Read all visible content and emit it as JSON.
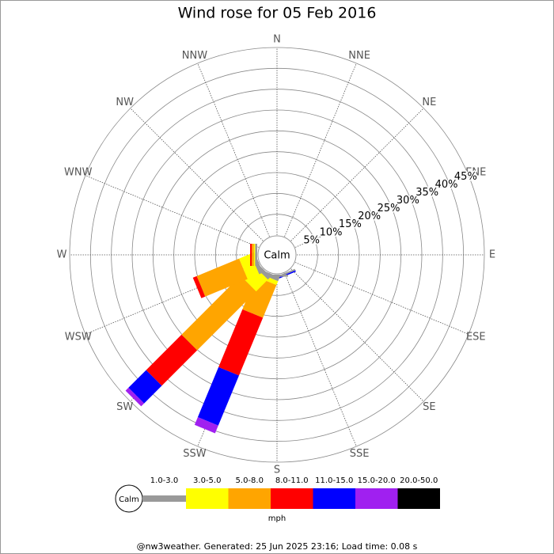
{
  "chart_data": {
    "type": "windrose",
    "title": "Wind rose for 05 Feb 2016",
    "center_label": "Calm",
    "directions": [
      "N",
      "NNE",
      "NE",
      "ENE",
      "E",
      "ESE",
      "SE",
      "SSE",
      "S",
      "SSW",
      "SW",
      "WSW",
      "W",
      "WNW",
      "NW",
      "NNW"
    ],
    "ylim": [
      0,
      45
    ],
    "yticks": [
      {
        "value": 5,
        "label": "5%"
      },
      {
        "value": 10,
        "label": "10%"
      },
      {
        "value": 15,
        "label": "15%"
      },
      {
        "value": 20,
        "label": "20%"
      },
      {
        "value": 25,
        "label": "25%"
      },
      {
        "value": 30,
        "label": "30%"
      },
      {
        "value": 35,
        "label": "35%"
      },
      {
        "value": 40,
        "label": "40%"
      },
      {
        "value": 45,
        "label": "45%"
      }
    ],
    "series": [
      {
        "name": "1.0-3.0",
        "color": "#999999",
        "values": [
          0,
          0,
          0,
          0,
          0,
          0,
          0,
          0.4,
          0.5,
          1,
          1,
          1,
          0.5,
          0,
          0,
          0
        ]
      },
      {
        "name": "3.0-5.0",
        "color": "#ffff00",
        "values": [
          0,
          0,
          0,
          0,
          0,
          0,
          0,
          0,
          0,
          1,
          4,
          3,
          0.3,
          0,
          0,
          0
        ]
      },
      {
        "name": "5.0-8.0",
        "color": "#ffa500",
        "values": [
          0,
          0,
          0,
          0,
          0,
          0,
          0,
          0,
          0,
          8.5,
          20,
          11,
          0.5,
          0,
          0,
          0
        ]
      },
      {
        "name": "8.0-11.0",
        "color": "#ff0000",
        "values": [
          0,
          0,
          0,
          0,
          0,
          0,
          0,
          0,
          0,
          15,
          12,
          1,
          0.4,
          0,
          0,
          0
        ]
      },
      {
        "name": "11.0-15.0",
        "color": "#0000ff",
        "values": [
          0,
          0,
          0,
          0,
          0,
          0,
          0,
          0.3,
          0,
          13,
          6,
          0,
          0,
          0,
          0,
          0
        ]
      },
      {
        "name": "15.0-20.0",
        "color": "#a020f0",
        "values": [
          0,
          0,
          0,
          0,
          0,
          0,
          0,
          0,
          0,
          2,
          1,
          0,
          0,
          0,
          0,
          0
        ]
      },
      {
        "name": "20.0-50.0",
        "color": "#000000",
        "values": [
          0,
          0,
          0,
          0,
          0,
          0,
          0,
          0,
          0,
          0,
          0,
          0,
          0,
          0,
          0,
          0
        ]
      }
    ],
    "legend_unit": "mph",
    "footer": "@nw3weather. Generated: 25 Jun 2025 23:16; Load time: 0.08 s"
  }
}
